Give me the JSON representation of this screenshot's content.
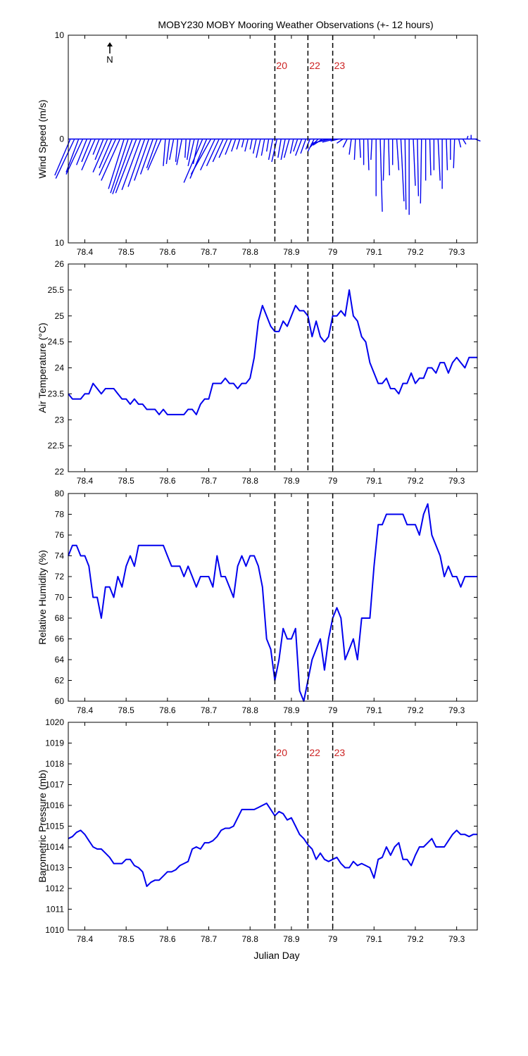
{
  "title": "MOBY230 MOBY Mooring Weather Observations (+- 12 hours)",
  "north_label": "N",
  "xlabel": "Julian Day",
  "colors": {
    "line": "#0000ee",
    "marker": "#cc2222",
    "axes": "#000000"
  },
  "markers": {
    "x": [
      78.86,
      78.94,
      79.0
    ],
    "labels": [
      "20",
      "22",
      "23"
    ]
  },
  "x_ticks": [
    "78.4",
    "78.5",
    "78.6",
    "78.7",
    "78.8",
    "78.9",
    "79",
    "79.1",
    "79.2",
    "79.3"
  ],
  "chart_data": [
    {
      "type": "line",
      "ylabel": "Wind Speed (m/s)",
      "y_ticks": [
        "10",
        "0",
        "10"
      ],
      "xlim": [
        78.36,
        79.35
      ],
      "ylim": [
        -10,
        10
      ],
      "note": "wind vectors (stick plot)",
      "series": [
        {
          "x": [
            78.365,
            78.375,
            78.385,
            78.395,
            78.405,
            78.415,
            78.425,
            78.435,
            78.445,
            78.455,
            78.465,
            78.475,
            78.485,
            78.495,
            78.505,
            78.515,
            78.525,
            78.535,
            78.545,
            78.555,
            78.565,
            78.575,
            78.585,
            78.595,
            78.605,
            78.615,
            78.625,
            78.635,
            78.645,
            78.655,
            78.665,
            78.675,
            78.685,
            78.695,
            78.705,
            78.715,
            78.725,
            78.735,
            78.745,
            78.755,
            78.765,
            78.775,
            78.785,
            78.795,
            78.805,
            78.815,
            78.825,
            78.835,
            78.845,
            78.855,
            78.865,
            78.875,
            78.885,
            78.895,
            78.905,
            78.915,
            78.925,
            78.935,
            78.945,
            78.955,
            78.965,
            78.975,
            78.985,
            78.995,
            79.005,
            79.015,
            79.025,
            79.035,
            79.045,
            79.055,
            79.065,
            79.075,
            79.085,
            79.095,
            79.105,
            79.115,
            79.125,
            79.135,
            79.145,
            79.155,
            79.165,
            79.175,
            79.185,
            79.195,
            79.205,
            79.215,
            79.225,
            79.235,
            79.245,
            79.255,
            79.265,
            79.275,
            79.285,
            79.295,
            79.305,
            79.315,
            79.325,
            79.335,
            79.345
          ],
          "u": [
            -1.5,
            -1.8,
            -1.2,
            -1.6,
            -1.0,
            -0.9,
            -1.3,
            -0.6,
            -0.8,
            -1.4,
            -1.2,
            -1.6,
            -1.8,
            -1.5,
            -1.7,
            -1.9,
            -2.0,
            -1.8,
            -1.6,
            -1.4,
            -1.2,
            -1.0,
            -1.3,
            -0.2,
            -0.3,
            -0.4,
            -0.2,
            -0.5,
            -0.1,
            -0.3,
            -0.6,
            -0.5,
            -1.8,
            -1.6,
            -1.9,
            -1.4,
            -1.2,
            -1.0,
            -0.8,
            -0.6,
            -0.4,
            -0.3,
            -0.2,
            -0.3,
            -0.2,
            -0.3,
            -0.4,
            -0.3,
            -0.2,
            -0.4,
            -0.5,
            -0.3,
            -0.4,
            -0.5,
            -0.3,
            -0.4,
            -0.6,
            -0.5,
            -0.4,
            -0.6,
            -0.8,
            -0.9,
            -1.5,
            -1.8,
            -1.2,
            -0.8,
            -0.6,
            -0.4,
            -0.2,
            -0.1,
            0.1,
            0.0,
            0.1,
            -0.1,
            0.0,
            0.2,
            -0.1,
            0.1,
            0.0,
            0.2,
            0.3,
            0.1,
            0.0,
            0.2,
            0.1,
            -0.1,
            0.0,
            0.1,
            0.0,
            0.2,
            0.0,
            0.1,
            0.0,
            -0.1,
            0.2,
            0.3,
            0.1,
            0.0,
            0.5
          ],
          "v": [
            -3.5,
            -3.8,
            -3.2,
            -3.4,
            -2.5,
            -2.2,
            -3.0,
            -1.5,
            -2.0,
            -3.2,
            -2.8,
            -3.5,
            -4.0,
            -4.8,
            -5.2,
            -5.3,
            -5.2,
            -4.9,
            -4.6,
            -4.0,
            -3.4,
            -2.8,
            -3.0,
            -2.6,
            -2.4,
            -2.0,
            -2.2,
            -2.5,
            -1.8,
            -2.0,
            -2.6,
            -2.4,
            -4.2,
            -3.8,
            -3.4,
            -3.0,
            -2.6,
            -2.2,
            -1.8,
            -1.5,
            -1.2,
            -1.0,
            -0.8,
            -1.2,
            -1.0,
            -1.4,
            -1.8,
            -1.6,
            -1.2,
            -2.0,
            -2.2,
            -1.8,
            -2.0,
            -1.8,
            -1.4,
            -1.2,
            -1.6,
            -1.4,
            -1.0,
            -1.2,
            -0.8,
            -0.6,
            -0.5,
            -0.4,
            -0.3,
            -0.2,
            -0.4,
            -0.8,
            -1.5,
            -2.0,
            -1.8,
            -2.5,
            -3.0,
            -2.0,
            -5.5,
            -7.0,
            -4.0,
            -3.5,
            -2.5,
            -3.0,
            -6.0,
            -6.8,
            -7.3,
            -4.5,
            -5.5,
            -6.2,
            -4.0,
            -3.5,
            -3.0,
            -4.0,
            -4.8,
            -3.0,
            -2.0,
            -2.8,
            -0.8,
            -0.5,
            0.3,
            0.4,
            -0.2
          ]
        }
      ]
    },
    {
      "type": "line",
      "ylabel": "Air Temperature (°C)",
      "y_ticks": [
        "26",
        "25.5",
        "25",
        "24.5",
        "24",
        "23.5",
        "23",
        "22.5",
        "22"
      ],
      "xlim": [
        78.36,
        79.35
      ],
      "ylim": [
        22,
        26
      ],
      "series": [
        {
          "x": [
            78.36,
            78.37,
            78.38,
            78.39,
            78.4,
            78.41,
            78.42,
            78.43,
            78.44,
            78.45,
            78.46,
            78.47,
            78.48,
            78.49,
            78.5,
            78.51,
            78.52,
            78.53,
            78.54,
            78.55,
            78.56,
            78.57,
            78.58,
            78.59,
            78.6,
            78.61,
            78.62,
            78.63,
            78.64,
            78.65,
            78.66,
            78.67,
            78.68,
            78.69,
            78.7,
            78.71,
            78.72,
            78.73,
            78.74,
            78.75,
            78.76,
            78.77,
            78.78,
            78.79,
            78.8,
            78.81,
            78.82,
            78.83,
            78.84,
            78.85,
            78.86,
            78.87,
            78.88,
            78.89,
            78.9,
            78.91,
            78.92,
            78.93,
            78.94,
            78.95,
            78.96,
            78.97,
            78.98,
            78.99,
            79.0,
            79.01,
            79.02,
            79.03,
            79.04,
            79.05,
            79.06,
            79.07,
            79.08,
            79.09,
            79.1,
            79.11,
            79.12,
            79.13,
            79.14,
            79.15,
            79.16,
            79.17,
            79.18,
            79.19,
            79.2,
            79.21,
            79.22,
            79.23,
            79.24,
            79.25,
            79.26,
            79.27,
            79.28,
            79.29,
            79.3,
            79.31,
            79.32,
            79.33,
            79.34,
            79.35
          ],
          "y": [
            23.5,
            23.4,
            23.4,
            23.4,
            23.5,
            23.5,
            23.7,
            23.6,
            23.5,
            23.6,
            23.6,
            23.6,
            23.5,
            23.4,
            23.4,
            23.3,
            23.4,
            23.3,
            23.3,
            23.2,
            23.2,
            23.2,
            23.1,
            23.2,
            23.1,
            23.1,
            23.1,
            23.1,
            23.1,
            23.2,
            23.2,
            23.1,
            23.3,
            23.4,
            23.4,
            23.7,
            23.7,
            23.7,
            23.8,
            23.7,
            23.7,
            23.6,
            23.7,
            23.7,
            23.8,
            24.2,
            24.9,
            25.2,
            25.0,
            24.8,
            24.7,
            24.7,
            24.9,
            24.8,
            25.0,
            25.2,
            25.1,
            25.1,
            25.0,
            24.6,
            24.9,
            24.6,
            24.5,
            24.6,
            25.0,
            25.0,
            25.1,
            25.0,
            25.5,
            25.0,
            24.9,
            24.6,
            24.5,
            24.1,
            23.9,
            23.7,
            23.7,
            23.8,
            23.6,
            23.6,
            23.5,
            23.7,
            23.7,
            23.9,
            23.7,
            23.8,
            23.8,
            24.0,
            24.0,
            23.9,
            24.1,
            24.1,
            23.9,
            24.1,
            24.2,
            24.1,
            24.0,
            24.2,
            24.2,
            24.2
          ]
        }
      ]
    },
    {
      "type": "line",
      "ylabel": "Relative Humidity (%)",
      "y_ticks": [
        "80",
        "78",
        "76",
        "74",
        "72",
        "70",
        "68",
        "66",
        "64",
        "62",
        "60"
      ],
      "xlim": [
        78.36,
        79.35
      ],
      "ylim": [
        60,
        80
      ],
      "series": [
        {
          "x": [
            78.36,
            78.37,
            78.38,
            78.39,
            78.4,
            78.41,
            78.42,
            78.43,
            78.44,
            78.45,
            78.46,
            78.47,
            78.48,
            78.49,
            78.5,
            78.51,
            78.52,
            78.53,
            78.54,
            78.55,
            78.56,
            78.57,
            78.58,
            78.59,
            78.6,
            78.61,
            78.62,
            78.63,
            78.64,
            78.65,
            78.66,
            78.67,
            78.68,
            78.69,
            78.7,
            78.71,
            78.72,
            78.73,
            78.74,
            78.75,
            78.76,
            78.77,
            78.78,
            78.79,
            78.8,
            78.81,
            78.82,
            78.83,
            78.84,
            78.85,
            78.86,
            78.87,
            78.88,
            78.89,
            78.9,
            78.91,
            78.92,
            78.93,
            78.94,
            78.95,
            78.96,
            78.97,
            78.98,
            78.99,
            79.0,
            79.01,
            79.02,
            79.03,
            79.04,
            79.05,
            79.06,
            79.07,
            79.08,
            79.09,
            79.1,
            79.11,
            79.12,
            79.13,
            79.14,
            79.15,
            79.16,
            79.17,
            79.18,
            79.19,
            79.2,
            79.21,
            79.22,
            79.23,
            79.24,
            79.25,
            79.26,
            79.27,
            79.28,
            79.29,
            79.3,
            79.31,
            79.32,
            79.33,
            79.34,
            79.35
          ],
          "y": [
            74,
            75,
            75,
            74,
            74,
            73,
            70,
            70,
            68,
            71,
            71,
            70,
            72,
            71,
            73,
            74,
            73,
            75,
            75,
            75,
            75,
            75,
            75,
            75,
            74,
            73,
            73,
            73,
            72,
            73,
            72,
            71,
            72,
            72,
            72,
            71,
            74,
            72,
            72,
            71,
            70,
            73,
            74,
            73,
            74,
            74,
            73,
            71,
            66,
            65,
            62,
            64,
            67,
            66,
            66,
            67,
            61,
            60,
            62,
            64,
            65,
            66,
            63,
            66,
            68,
            69,
            68,
            64,
            65,
            66,
            64,
            68,
            68,
            68,
            73,
            77,
            77,
            78,
            78,
            78,
            78,
            78,
            77,
            77,
            77,
            76,
            78,
            79,
            76,
            75,
            74,
            72,
            73,
            72,
            72,
            71,
            72,
            72,
            72,
            72
          ]
        }
      ]
    },
    {
      "type": "line",
      "ylabel": "Barometric Pressure (mb)",
      "y_ticks": [
        "1020",
        "1019",
        "1018",
        "1017",
        "1016",
        "1015",
        "1014",
        "1013",
        "1012",
        "1011",
        "1010"
      ],
      "xlim": [
        78.36,
        79.35
      ],
      "ylim": [
        1010,
        1020
      ],
      "series": [
        {
          "x": [
            78.36,
            78.37,
            78.38,
            78.39,
            78.4,
            78.41,
            78.42,
            78.43,
            78.44,
            78.45,
            78.46,
            78.47,
            78.48,
            78.49,
            78.5,
            78.51,
            78.52,
            78.53,
            78.54,
            78.55,
            78.56,
            78.57,
            78.58,
            78.59,
            78.6,
            78.61,
            78.62,
            78.63,
            78.64,
            78.65,
            78.66,
            78.67,
            78.68,
            78.69,
            78.7,
            78.71,
            78.72,
            78.73,
            78.74,
            78.75,
            78.76,
            78.77,
            78.78,
            78.79,
            78.8,
            78.81,
            78.82,
            78.83,
            78.84,
            78.85,
            78.86,
            78.87,
            78.88,
            78.89,
            78.9,
            78.91,
            78.92,
            78.93,
            78.94,
            78.95,
            78.96,
            78.97,
            78.98,
            78.99,
            79.0,
            79.01,
            79.02,
            79.03,
            79.04,
            79.05,
            79.06,
            79.07,
            79.08,
            79.09,
            79.1,
            79.11,
            79.12,
            79.13,
            79.14,
            79.15,
            79.16,
            79.17,
            79.18,
            79.19,
            79.2,
            79.21,
            79.22,
            79.23,
            79.24,
            79.25,
            79.26,
            79.27,
            79.28,
            79.29,
            79.3,
            79.31,
            79.32,
            79.33,
            79.34,
            79.35
          ],
          "y": [
            1014.4,
            1014.5,
            1014.7,
            1014.8,
            1014.6,
            1014.3,
            1014.0,
            1013.9,
            1013.9,
            1013.7,
            1013.5,
            1013.2,
            1013.2,
            1013.2,
            1013.4,
            1013.4,
            1013.1,
            1013.0,
            1012.8,
            1012.1,
            1012.3,
            1012.4,
            1012.4,
            1012.6,
            1012.8,
            1012.8,
            1012.9,
            1013.1,
            1013.2,
            1013.3,
            1013.9,
            1014.0,
            1013.9,
            1014.2,
            1014.2,
            1014.3,
            1014.5,
            1014.8,
            1014.9,
            1014.9,
            1015.0,
            1015.4,
            1015.8,
            1015.8,
            1015.8,
            1015.8,
            1015.9,
            1016.0,
            1016.1,
            1015.8,
            1015.5,
            1015.7,
            1015.6,
            1015.3,
            1015.4,
            1015.0,
            1014.6,
            1014.4,
            1014.1,
            1013.9,
            1013.4,
            1013.7,
            1013.4,
            1013.3,
            1013.4,
            1013.5,
            1013.2,
            1013.0,
            1013.0,
            1013.3,
            1013.1,
            1013.2,
            1013.1,
            1013.0,
            1012.5,
            1013.4,
            1013.5,
            1014.0,
            1013.6,
            1014.0,
            1014.2,
            1013.4,
            1013.4,
            1013.1,
            1013.6,
            1014.0,
            1014.0,
            1014.2,
            1014.4,
            1014.0,
            1014.0,
            1014.0,
            1014.3,
            1014.6,
            1014.8,
            1014.6,
            1014.6,
            1014.5,
            1014.6,
            1014.6
          ]
        }
      ]
    }
  ]
}
